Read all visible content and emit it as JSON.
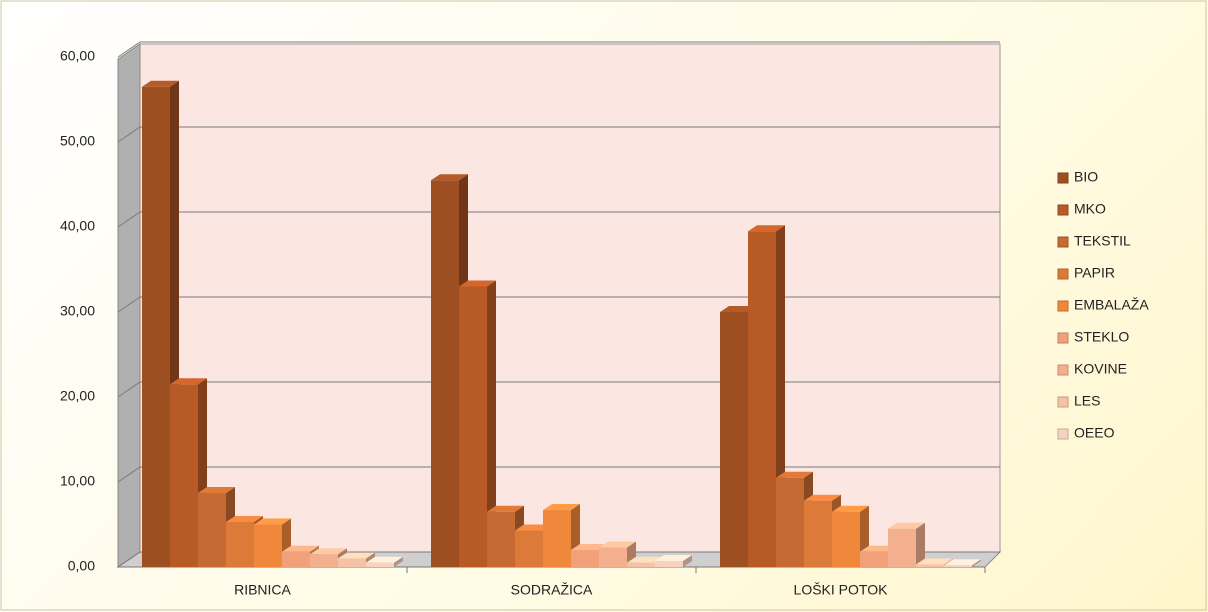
{
  "chart_data": {
    "type": "bar3d",
    "categories": [
      "RIBNICA",
      "SODRAŽICA",
      "LOŠKI POTOK"
    ],
    "series": [
      {
        "name": "BIO",
        "color": "#9e4f22",
        "values": [
          56.5,
          45.5,
          30
        ]
      },
      {
        "name": "MKO",
        "color": "#b85a26",
        "values": [
          21.5,
          33,
          39.5
        ]
      },
      {
        "name": "TEKSTIL",
        "color": "#c46a32",
        "values": [
          8.7,
          6.5,
          10.5
        ]
      },
      {
        "name": "PAPIR",
        "color": "#dc7a3a",
        "values": [
          5.3,
          4.3,
          7.8
        ]
      },
      {
        "name": "EMBALAŽA",
        "color": "#f0883c",
        "values": [
          5,
          6.7,
          6.5
        ]
      },
      {
        "name": "STEKLO",
        "color": "#f1a07a",
        "values": [
          1.8,
          2,
          1.8
        ]
      },
      {
        "name": "KOVINE",
        "color": "#f4b08e",
        "values": [
          1.5,
          2.3,
          4.5
        ]
      },
      {
        "name": "LES",
        "color": "#f6c2a6",
        "values": [
          1,
          0.5,
          0.3
        ]
      },
      {
        "name": "OEEO",
        "color": "#f8d2c0",
        "values": [
          0.5,
          0.7,
          0.2
        ]
      }
    ],
    "ylim": [
      0,
      60
    ],
    "yticks": [
      {
        "value": 0,
        "label": "0,00"
      },
      {
        "value": 10,
        "label": "10,00"
      },
      {
        "value": 20,
        "label": "20,00"
      },
      {
        "value": 30,
        "label": "30,00"
      },
      {
        "value": 40,
        "label": "40,00"
      },
      {
        "value": 50,
        "label": "50,00"
      },
      {
        "value": 60,
        "label": "60,00"
      }
    ],
    "grid": true,
    "legend": "right"
  }
}
